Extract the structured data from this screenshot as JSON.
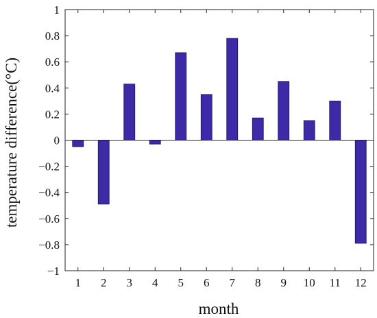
{
  "chart_data": {
    "type": "bar",
    "title": "",
    "xlabel": "month",
    "ylabel": "temperature difference(°C)",
    "categories": [
      "1",
      "2",
      "3",
      "4",
      "5",
      "6",
      "7",
      "8",
      "9",
      "10",
      "11",
      "12"
    ],
    "values": [
      -0.05,
      -0.49,
      0.43,
      -0.03,
      0.67,
      0.35,
      0.78,
      0.17,
      0.45,
      0.15,
      0.3,
      -0.79
    ],
    "ylim": [
      -1,
      1
    ],
    "yticks": [
      1,
      0.8,
      0.6,
      0.4,
      0.2,
      0,
      -0.2,
      -0.4,
      -0.6,
      -0.8,
      -1
    ],
    "ytick_labels": [
      "1",
      "0.8",
      "0.6",
      "0.4",
      "0.2",
      "0",
      "−0.2",
      "−0.4",
      "−0.6",
      "−0.8",
      "−1"
    ],
    "grid": false,
    "bar_color": "#3d2aa6",
    "bar_edge_color": "#1a1060"
  }
}
